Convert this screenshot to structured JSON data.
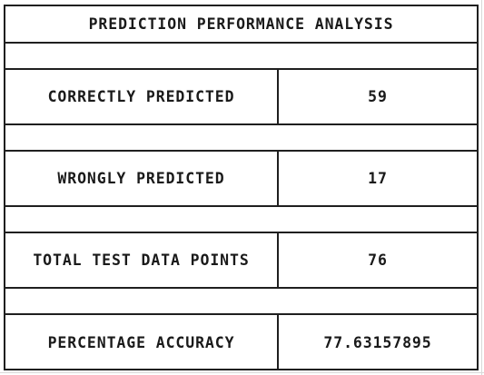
{
  "title": "PREDICTION PERFORMANCE ANALYSIS",
  "rows": [
    {
      "label": "CORRECTLY PREDICTED",
      "value": "59"
    },
    {
      "label": "WRONGLY PREDICTED",
      "value": "17"
    },
    {
      "label": "TOTAL TEST DATA POINTS",
      "value": "76"
    },
    {
      "label": "PERCENTAGE ACCURACY",
      "value": "77.63157895"
    }
  ]
}
